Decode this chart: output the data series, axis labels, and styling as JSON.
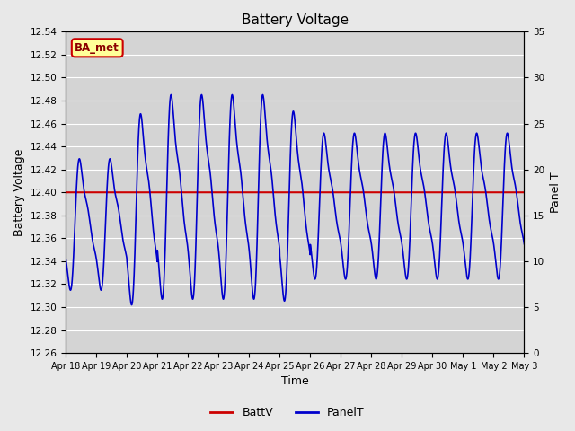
{
  "title": "Battery Voltage",
  "xlabel": "Time",
  "ylabel_left": "Battery Voltage",
  "ylabel_right": "Panel T",
  "ylim_left": [
    12.26,
    12.54
  ],
  "ylim_right": [
    0,
    35
  ],
  "yticks_left": [
    12.26,
    12.28,
    12.3,
    12.32,
    12.34,
    12.36,
    12.38,
    12.4,
    12.42,
    12.44,
    12.46,
    12.48,
    12.5,
    12.52,
    12.54
  ],
  "yticks_right": [
    0,
    5,
    10,
    15,
    20,
    25,
    30,
    35
  ],
  "xtick_labels": [
    "Apr 18",
    "Apr 19",
    "Apr 20",
    "Apr 21",
    "Apr 22",
    "Apr 23",
    "Apr 24",
    "Apr 25",
    "Apr 26",
    "Apr 27",
    "Apr 28",
    "Apr 29",
    "Apr 30",
    "May 1",
    "May 2",
    "May 3"
  ],
  "battv_value": 12.4,
  "battv_color": "#cc0000",
  "panelt_color": "#0000cc",
  "bg_color": "#e8e8e8",
  "plot_bg_color": "#d4d4d4",
  "grid_color": "#ffffff",
  "legend_battv": "BattV",
  "legend_panelt": "PanelT",
  "annotation_text": "BA_met",
  "annotation_bg": "#ffff99",
  "annotation_border": "#cc0000",
  "annotation_text_color": "#8b0000"
}
